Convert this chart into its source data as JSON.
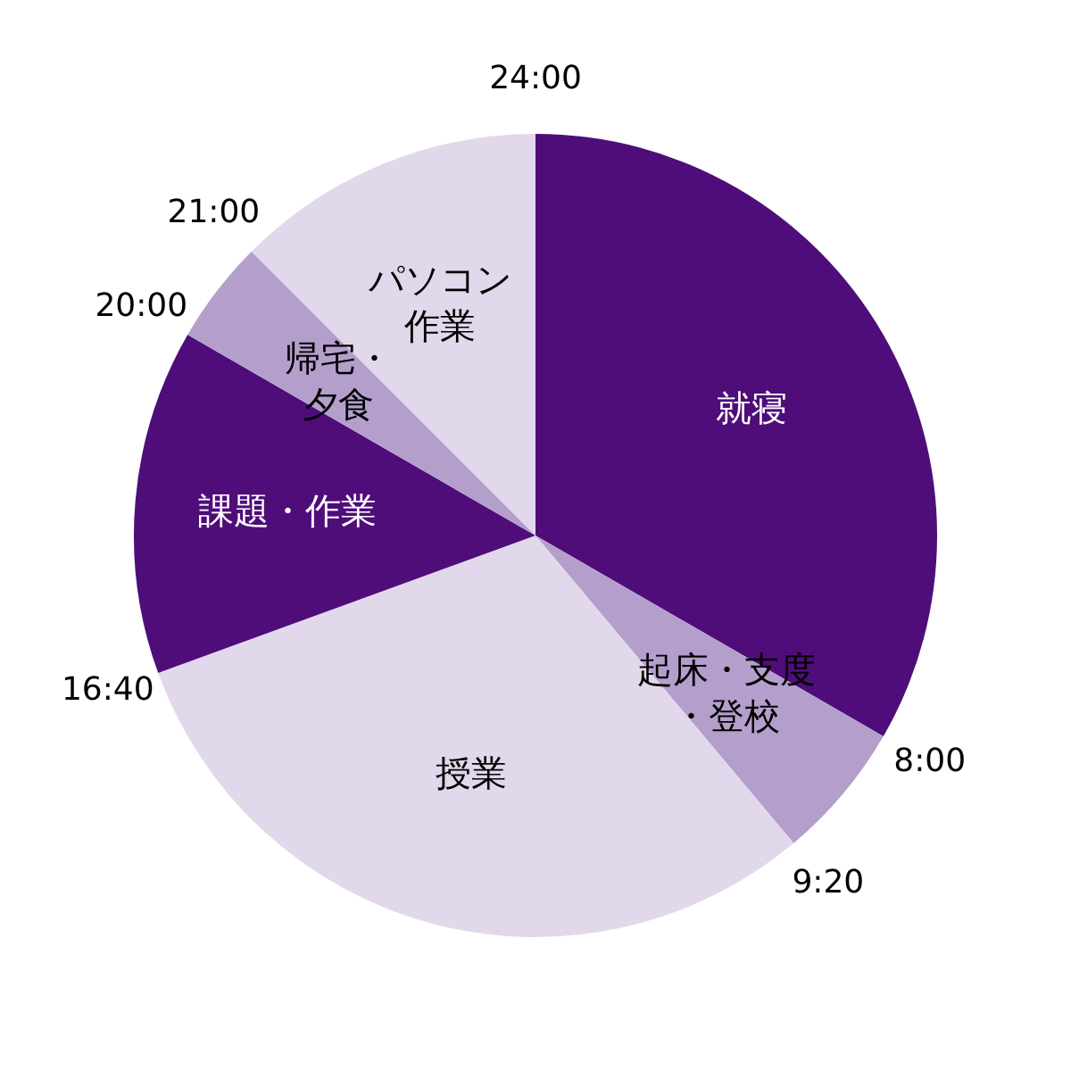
{
  "chart_data": {
    "type": "pie",
    "categories": [
      "就寝",
      "起床・支度・登校",
      "授業",
      "課題・作業",
      "帰宅・夕食",
      "パソコン作業"
    ],
    "values": [
      33.33,
      5.56,
      30.55,
      13.89,
      4.17,
      12.5
    ],
    "colors": [
      "#4f0d7a",
      "#b49fcc",
      "#e2d8eb",
      "#4f0d7a",
      "#b49fcc",
      "#e2d8eb"
    ],
    "annotations": [
      "24:00",
      "8:00",
      "9:20",
      "16:40",
      "20:00",
      "21:00"
    ],
    "legend": false
  }
}
